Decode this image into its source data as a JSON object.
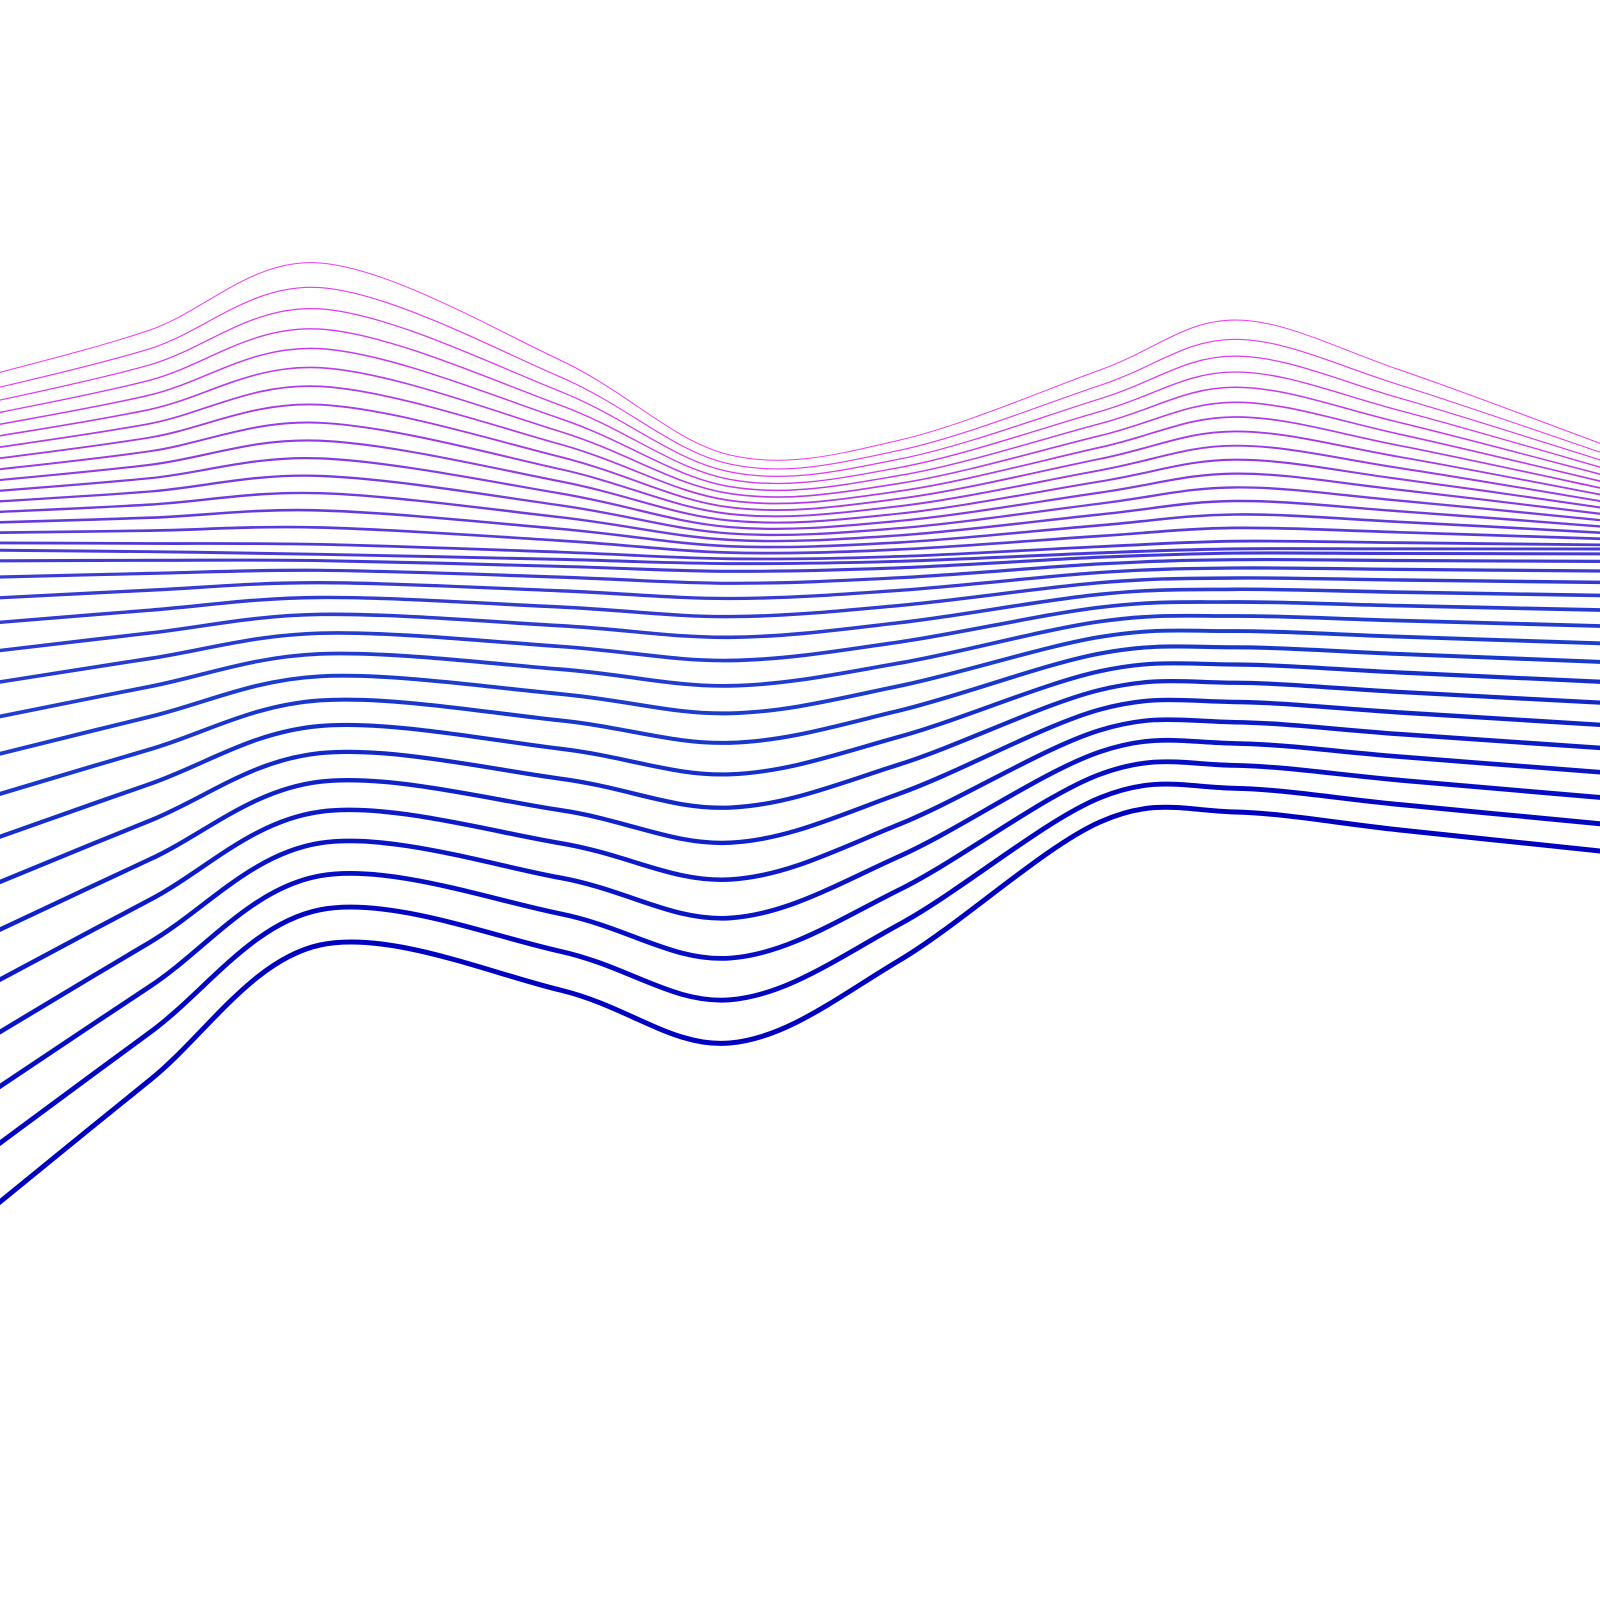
{
  "artwork": {
    "description_type": "abstract-wave-lines",
    "line_count": 34,
    "colors": {
      "background": "#ffffff",
      "top": "#f03cf0",
      "middle": "#4a3ad8",
      "lower": "#1a3ccc",
      "bottom": "#0000c0"
    }
  }
}
